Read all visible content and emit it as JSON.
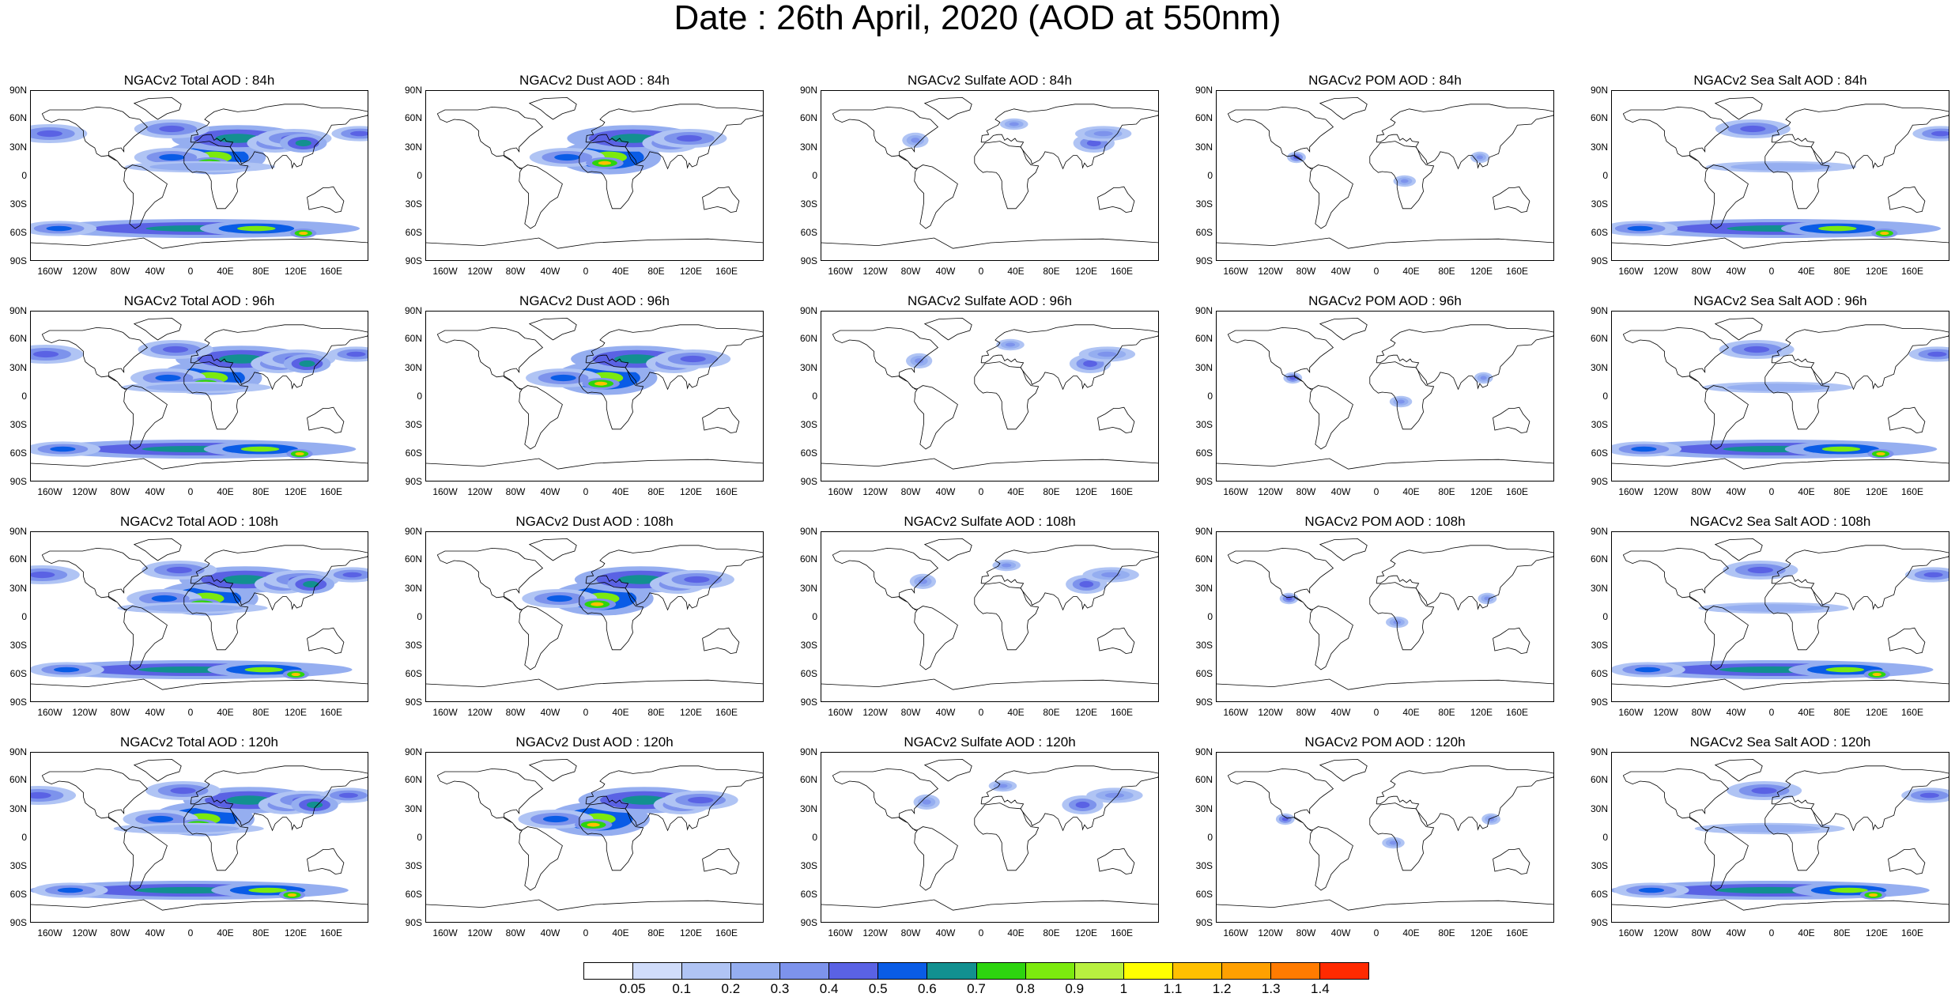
{
  "title": "Date : 26th April, 2020 (AOD at 550nm)",
  "lat_labels": [
    "90N",
    "60N",
    "30N",
    "0",
    "30S",
    "60S",
    "90S"
  ],
  "lon_labels": [
    "160W",
    "120W",
    "80W",
    "40W",
    "0",
    "40E",
    "80E",
    "120E",
    "160E"
  ],
  "panels": [
    {
      "title": "NGACv2 Total AOD : 84h",
      "species": "total",
      "hour": 84
    },
    {
      "title": "NGACv2 Dust AOD : 84h",
      "species": "dust",
      "hour": 84
    },
    {
      "title": "NGACv2 Sulfate AOD : 84h",
      "species": "sulfate",
      "hour": 84
    },
    {
      "title": "NGACv2 POM AOD : 84h",
      "species": "pom",
      "hour": 84
    },
    {
      "title": "NGACv2 Sea Salt AOD : 84h",
      "species": "seasalt",
      "hour": 84
    },
    {
      "title": "NGACv2 Total AOD : 96h",
      "species": "total",
      "hour": 96
    },
    {
      "title": "NGACv2 Dust AOD : 96h",
      "species": "dust",
      "hour": 96
    },
    {
      "title": "NGACv2 Sulfate AOD : 96h",
      "species": "sulfate",
      "hour": 96
    },
    {
      "title": "NGACv2 POM AOD : 96h",
      "species": "pom",
      "hour": 96
    },
    {
      "title": "NGACv2 Sea Salt AOD : 96h",
      "species": "seasalt",
      "hour": 96
    },
    {
      "title": "NGACv2 Total AOD : 108h",
      "species": "total",
      "hour": 108
    },
    {
      "title": "NGACv2 Dust AOD : 108h",
      "species": "dust",
      "hour": 108
    },
    {
      "title": "NGACv2 Sulfate AOD : 108h",
      "species": "sulfate",
      "hour": 108
    },
    {
      "title": "NGACv2 POM AOD : 108h",
      "species": "pom",
      "hour": 108
    },
    {
      "title": "NGACv2 Sea Salt AOD : 108h",
      "species": "seasalt",
      "hour": 108
    },
    {
      "title": "NGACv2 Total AOD : 120h",
      "species": "total",
      "hour": 120
    },
    {
      "title": "NGACv2 Dust AOD : 120h",
      "species": "dust",
      "hour": 120
    },
    {
      "title": "NGACv2 Sulfate AOD : 120h",
      "species": "sulfate",
      "hour": 120
    },
    {
      "title": "NGACv2 POM AOD : 120h",
      "species": "pom",
      "hour": 120
    },
    {
      "title": "NGACv2 Sea Salt  AOD : 120h",
      "species": "seasalt",
      "hour": 120
    }
  ],
  "colorbar": {
    "labels": [
      "0.05",
      "0.1",
      "0.2",
      "0.3",
      "0.4",
      "0.5",
      "0.6",
      "0.7",
      "0.8",
      "0.9",
      "1",
      "1.1",
      "1.2",
      "1.3",
      "1.4"
    ],
    "colors": [
      "#ffffff",
      "#d0dcfa",
      "#b0c4f4",
      "#95aef0",
      "#7d93ec",
      "#5a62e4",
      "#0a5ce6",
      "#129090",
      "#2dd40f",
      "#7cea0e",
      "#b8f040",
      "#ffff00",
      "#ffc000",
      "#ffa000",
      "#ff7b00",
      "#ff2a00"
    ]
  }
}
